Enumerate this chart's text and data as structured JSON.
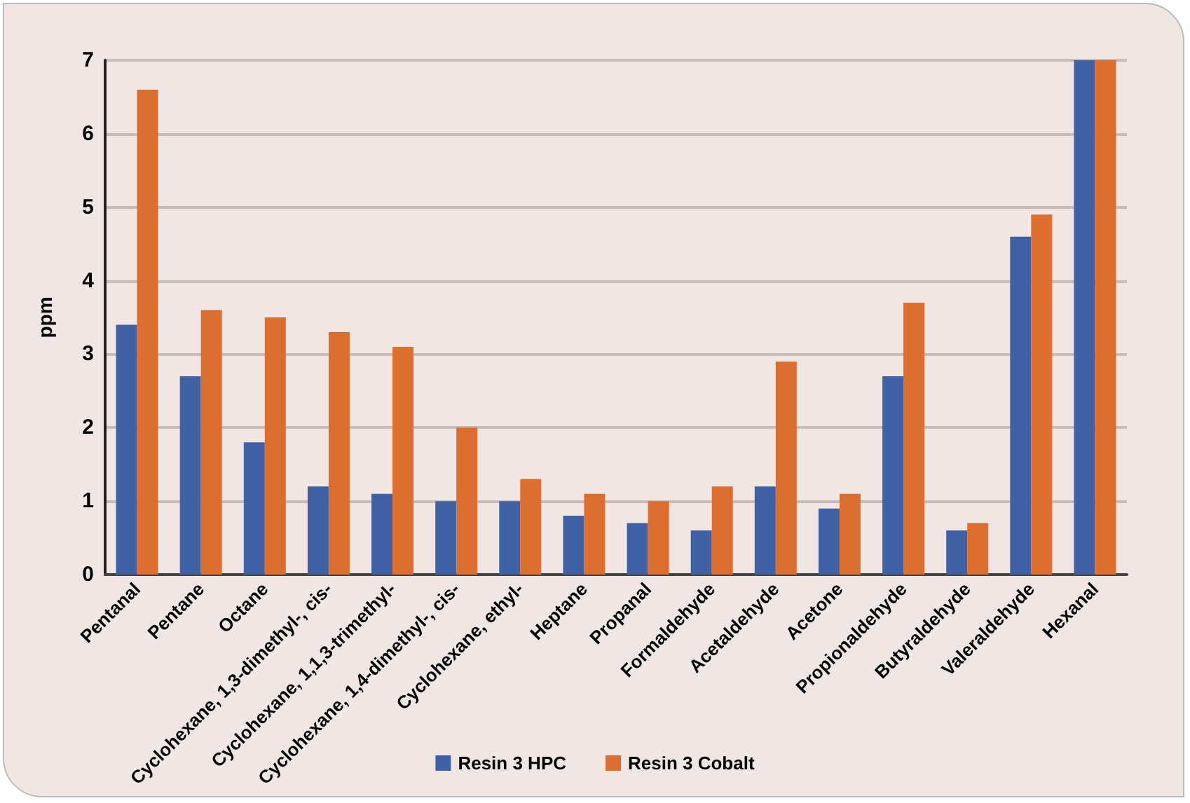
{
  "chart_data": {
    "type": "bar",
    "ylabel": "ppm",
    "categories": [
      "Pentanal",
      "Pentane",
      "Octane",
      "Cyclohexane, 1,3-dimethyl-, cis-",
      "Cyclohexane, 1,1,3-trimethyl-",
      "Cyclohexane, 1,4-dimethyl-, cis-",
      "Cyclohexane, ethyl-",
      "Heptane",
      "Propanal",
      "Formaldehyde",
      "Acetaldehyde",
      "Acetone",
      "Propionaldehyde",
      "Butyraldehyde",
      "Valeraldehyde",
      "Hexanal"
    ],
    "series": [
      {
        "name": "Resin 3 HPC",
        "color": "#4062a4",
        "values": [
          3.4,
          2.7,
          1.8,
          1.2,
          1.1,
          1.0,
          1.0,
          0.8,
          0.7,
          0.6,
          1.2,
          0.9,
          2.7,
          0.6,
          4.6,
          7.0
        ]
      },
      {
        "name": "Resin 3 Cobalt",
        "color": "#dc6e30",
        "values": [
          6.6,
          3.6,
          3.5,
          3.3,
          3.1,
          2.0,
          1.3,
          1.1,
          1.0,
          1.2,
          2.9,
          1.1,
          3.7,
          0.7,
          4.9,
          7.0
        ]
      }
    ],
    "ylim": [
      0,
      7
    ],
    "yticks": [
      0,
      1,
      2,
      3,
      4,
      5,
      6,
      7
    ],
    "grid": "y",
    "legend": "bottom"
  }
}
